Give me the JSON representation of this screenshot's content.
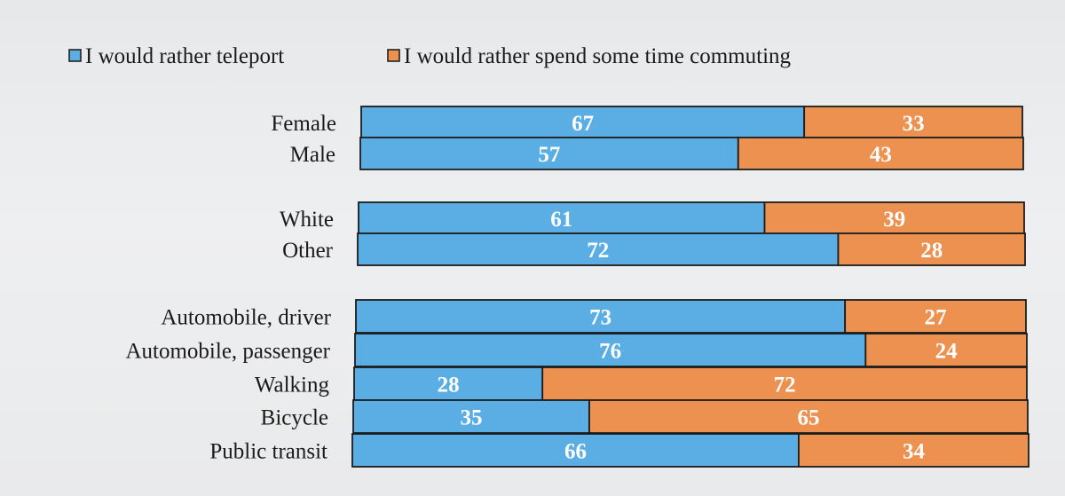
{
  "chart_data": {
    "type": "bar",
    "orientation": "horizontal",
    "stacked": true,
    "percent": true,
    "title": "",
    "xlabel": "",
    "ylabel": "",
    "xlim": [
      0,
      100
    ],
    "grid": false,
    "legend_position": "top-left",
    "categories": [
      "Female",
      "Male",
      "White",
      "Other",
      "Automobile, driver",
      "Automobile, passenger",
      "Walking",
      "Bicycle",
      "Public transit"
    ],
    "groups": [
      [
        "Female",
        "Male"
      ],
      [
        "White",
        "Other"
      ],
      [
        "Automobile, driver",
        "Automobile, passenger",
        "Walking",
        "Bicycle",
        "Public transit"
      ]
    ],
    "series": [
      {
        "name": "I would rather teleport",
        "color": "#5aaee3",
        "values": [
          67,
          57,
          61,
          72,
          73,
          76,
          28,
          35,
          66
        ]
      },
      {
        "name": "I would rather spend some time commuting",
        "color": "#ec914f",
        "values": [
          33,
          43,
          39,
          28,
          27,
          24,
          72,
          65,
          34
        ]
      }
    ]
  }
}
